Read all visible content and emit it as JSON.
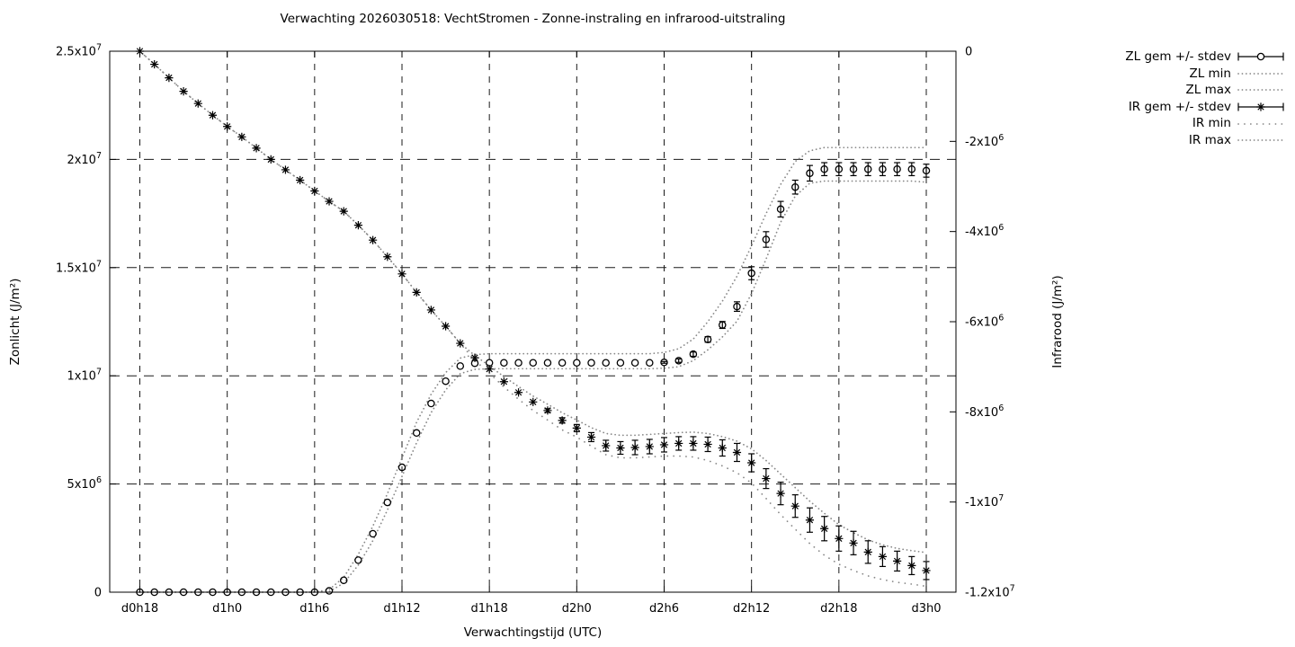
{
  "page": {
    "background": "#ffffff",
    "text_color": "#000000",
    "grid_color": "#1a1a1a",
    "minmax_line_color": "#878787"
  },
  "chart_data": {
    "type": "line",
    "title": "Verwachting 2026030518: VechtStromen - Zonne-instraling en infrarood-uitstraling",
    "xlabel": "Verwachtingstijd (UTC)",
    "ylabel_left": "Zonlicht (J/m²)",
    "ylabel_right": "Infrarood (J/m²)",
    "value_scale_note": "series values in 10^6 J/m2; left axis 0..25, right axis -12..0 (x10^6)",
    "grid": true,
    "legend_position": "outside-right-top",
    "x_axis": {
      "tick_labels": [
        "d0h18",
        "d1h0",
        "d1h6",
        "d1h12",
        "d1h18",
        "d2h0",
        "d2h6",
        "d2h12",
        "d2h18",
        "d3h0"
      ],
      "tick_hours": [
        0,
        6,
        12,
        18,
        24,
        30,
        36,
        42,
        48,
        54
      ],
      "hours_range": [
        0,
        54
      ]
    },
    "y_left_axis": {
      "tick_labels": [
        "0",
        "5x10^6",
        "1x10^7",
        "1.5x10^7",
        "2x10^7",
        "2.5x10^7"
      ],
      "tick_values": [
        0,
        5,
        10,
        15,
        20,
        25
      ],
      "range": [
        0,
        25
      ],
      "grid_values": [
        5,
        10,
        15,
        20
      ]
    },
    "y_right_axis": {
      "tick_labels": [
        "0",
        "-2x10^6",
        "-4x10^6",
        "-6x10^6",
        "-8x10^6",
        "-1x10^7",
        "-1.2x10^7"
      ],
      "tick_values": [
        0,
        -2,
        -4,
        -6,
        -8,
        -10,
        -12
      ],
      "range": [
        -12,
        0
      ]
    },
    "x_hours": [
      0,
      1,
      2,
      3,
      4,
      5,
      6,
      7,
      8,
      9,
      10,
      11,
      12,
      13,
      14,
      15,
      16,
      17,
      18,
      19,
      20,
      21,
      22,
      23,
      24,
      25,
      26,
      27,
      28,
      29,
      30,
      31,
      32,
      33,
      34,
      35,
      36,
      37,
      38,
      39,
      40,
      41,
      42,
      43,
      44,
      45,
      46,
      47,
      48,
      49,
      50,
      51,
      52,
      53,
      54
    ],
    "series": [
      {
        "id": "zl-mean",
        "name": "ZL gem +/- stdev",
        "axis": "left",
        "style": "errorbars",
        "marker": "circle",
        "color": "#000000",
        "values": [
          0,
          0,
          0,
          0,
          0,
          0,
          0,
          0,
          0,
          0,
          0,
          0,
          0,
          0.06,
          0.55,
          1.48,
          2.7,
          4.15,
          5.77,
          7.36,
          8.72,
          9.75,
          10.45,
          10.58,
          10.6,
          10.6,
          10.6,
          10.6,
          10.6,
          10.6,
          10.6,
          10.6,
          10.6,
          10.6,
          10.6,
          10.6,
          10.62,
          10.7,
          11.0,
          11.68,
          12.35,
          13.2,
          14.74,
          16.3,
          17.7,
          18.72,
          19.36,
          19.55,
          19.55,
          19.55,
          19.55,
          19.55,
          19.55,
          19.55,
          19.48
        ],
        "stdev": [
          0,
          0,
          0,
          0,
          0,
          0,
          0,
          0,
          0,
          0,
          0,
          0,
          0,
          0,
          0,
          0,
          0,
          0,
          0,
          0,
          0,
          0,
          0,
          0,
          0,
          0,
          0,
          0,
          0,
          0,
          0,
          0,
          0,
          0,
          0,
          0,
          0.04,
          0.08,
          0.1,
          0.13,
          0.16,
          0.22,
          0.3,
          0.36,
          0.36,
          0.32,
          0.36,
          0.3,
          0.3,
          0.3,
          0.3,
          0.3,
          0.3,
          0.3,
          0.3
        ]
      },
      {
        "id": "zl-min",
        "name": "ZL min",
        "axis": "left",
        "style": "dotted",
        "color": "#878787",
        "values": [
          0,
          0,
          0,
          0,
          0,
          0,
          0,
          0,
          0,
          0,
          0,
          0,
          0,
          0.02,
          0.42,
          1.25,
          2.38,
          3.8,
          5.35,
          6.9,
          8.3,
          9.35,
          10.1,
          10.3,
          10.33,
          10.33,
          10.33,
          10.33,
          10.33,
          10.33,
          10.33,
          10.33,
          10.33,
          10.33,
          10.33,
          10.33,
          10.35,
          10.42,
          10.7,
          11.2,
          11.8,
          12.52,
          13.8,
          15.4,
          17.1,
          18.3,
          18.9,
          19.0,
          19.0,
          19.0,
          19.0,
          19.0,
          19.0,
          19.0,
          18.95
        ]
      },
      {
        "id": "zl-max",
        "name": "ZL max",
        "axis": "left",
        "style": "dotted",
        "color": "#878787",
        "values": [
          0,
          0,
          0,
          0,
          0,
          0,
          0,
          0,
          0,
          0,
          0,
          0,
          0,
          0.12,
          0.68,
          1.75,
          3.05,
          4.55,
          6.2,
          7.85,
          9.15,
          10.15,
          10.82,
          10.98,
          11.02,
          11.02,
          11.02,
          11.02,
          11.02,
          11.02,
          11.02,
          11.02,
          11.02,
          11.02,
          11.02,
          11.02,
          11.08,
          11.25,
          11.7,
          12.5,
          13.45,
          14.6,
          16.0,
          17.5,
          18.85,
          19.9,
          20.4,
          20.55,
          20.55,
          20.55,
          20.55,
          20.55,
          20.55,
          20.55,
          20.55
        ]
      },
      {
        "id": "ir-mean",
        "name": "IR gem +/- stdev",
        "axis": "right",
        "style": "errorbars",
        "marker": "asterisk",
        "color": "#000000",
        "values": [
          0,
          -0.29,
          -0.59,
          -0.89,
          -1.16,
          -1.42,
          -1.67,
          -1.9,
          -2.15,
          -2.4,
          -2.63,
          -2.86,
          -3.1,
          -3.33,
          -3.55,
          -3.86,
          -4.19,
          -4.56,
          -4.94,
          -5.35,
          -5.74,
          -6.1,
          -6.48,
          -6.8,
          -7.05,
          -7.33,
          -7.57,
          -7.78,
          -7.97,
          -8.19,
          -8.36,
          -8.56,
          -8.75,
          -8.8,
          -8.79,
          -8.77,
          -8.73,
          -8.7,
          -8.7,
          -8.72,
          -8.8,
          -8.9,
          -9.13,
          -9.48,
          -9.81,
          -10.09,
          -10.4,
          -10.59,
          -10.81,
          -10.91,
          -11.11,
          -11.21,
          -11.31,
          -11.41,
          -11.52
        ],
        "stdev": [
          0,
          0,
          0,
          0,
          0,
          0,
          0,
          0,
          0,
          0,
          0,
          0,
          0,
          0,
          0,
          0,
          0,
          0,
          0,
          0,
          0,
          0,
          0,
          0,
          0,
          0,
          0,
          0,
          0.04,
          0.06,
          0.08,
          0.1,
          0.12,
          0.14,
          0.16,
          0.16,
          0.16,
          0.15,
          0.15,
          0.16,
          0.18,
          0.2,
          0.2,
          0.22,
          0.25,
          0.25,
          0.27,
          0.27,
          0.28,
          0.26,
          0.25,
          0.22,
          0.22,
          0.2,
          0.2
        ]
      },
      {
        "id": "ir-min",
        "name": "IR min",
        "axis": "right",
        "style": "dotted-sparse",
        "color": "#878787",
        "values": [
          0,
          -0.29,
          -0.59,
          -0.89,
          -1.16,
          -1.42,
          -1.67,
          -1.9,
          -2.15,
          -2.4,
          -2.63,
          -2.86,
          -3.1,
          -3.33,
          -3.55,
          -3.86,
          -4.19,
          -4.56,
          -4.94,
          -5.35,
          -5.74,
          -6.1,
          -6.48,
          -6.86,
          -7.14,
          -7.45,
          -7.72,
          -7.97,
          -8.18,
          -8.4,
          -8.56,
          -8.76,
          -8.95,
          -9.02,
          -9.02,
          -9.0,
          -8.98,
          -8.98,
          -9.0,
          -9.08,
          -9.2,
          -9.35,
          -9.58,
          -9.92,
          -10.28,
          -10.6,
          -10.92,
          -11.18,
          -11.38,
          -11.52,
          -11.64,
          -11.72,
          -11.78,
          -11.82,
          -11.87
        ]
      },
      {
        "id": "ir-max",
        "name": "IR max",
        "axis": "right",
        "style": "dotted",
        "color": "#878787",
        "values": [
          0,
          -0.29,
          -0.59,
          -0.89,
          -1.16,
          -1.42,
          -1.67,
          -1.9,
          -2.15,
          -2.4,
          -2.63,
          -2.86,
          -3.1,
          -3.33,
          -3.55,
          -3.86,
          -4.19,
          -4.56,
          -4.94,
          -5.35,
          -5.74,
          -6.1,
          -6.48,
          -6.75,
          -6.98,
          -7.22,
          -7.44,
          -7.65,
          -7.83,
          -8.02,
          -8.18,
          -8.35,
          -8.48,
          -8.52,
          -8.52,
          -8.5,
          -8.48,
          -8.46,
          -8.45,
          -8.48,
          -8.55,
          -8.65,
          -8.82,
          -9.08,
          -9.38,
          -9.68,
          -9.98,
          -10.25,
          -10.5,
          -10.68,
          -10.84,
          -10.95,
          -11.03,
          -11.08,
          -11.12
        ]
      }
    ]
  }
}
